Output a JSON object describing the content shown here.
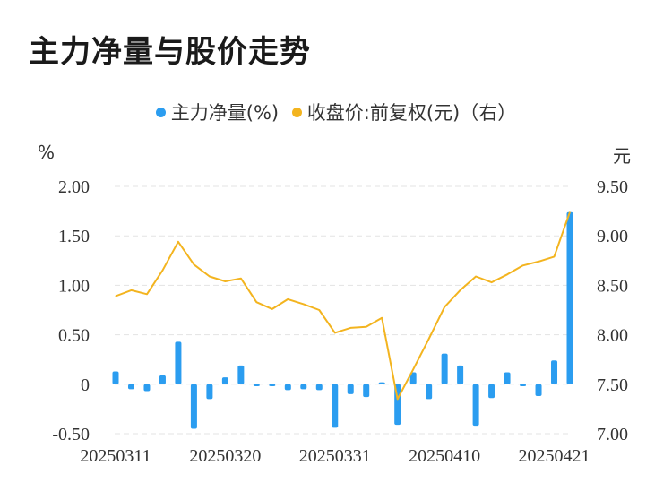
{
  "header": {
    "title": "主力净量与股价走势"
  },
  "legend": {
    "bar_label": "主力净量(%)",
    "line_label": "收盘价:前复权(元)（右）"
  },
  "units": {
    "left": "%",
    "right": "元"
  },
  "colors": {
    "bar": "#2b9df0",
    "line": "#f3b41f",
    "grid": "#e3e3e3",
    "text": "#333333"
  },
  "chart_data": {
    "type": "bar+line",
    "title": "主力净量与股价走势",
    "x_tick_labels": [
      "20250311",
      "20250320",
      "20250331",
      "20250410",
      "20250421"
    ],
    "x_tick_indices": [
      0,
      7,
      14,
      21,
      28
    ],
    "y_left": {
      "label": "%",
      "range": [
        -0.5,
        2.0
      ],
      "ticks": [
        "-0.50",
        "0",
        "0.50",
        "1.00",
        "1.50",
        "2.00"
      ]
    },
    "y_right": {
      "label": "元",
      "range": [
        7.0,
        9.5
      ],
      "ticks": [
        "7.00",
        "7.50",
        "8.00",
        "8.50",
        "9.00",
        "9.50"
      ]
    },
    "grid": true,
    "legend_position": "top-center",
    "series": [
      {
        "name": "主力净量(%)",
        "type": "bar",
        "axis": "left",
        "values": [
          0.13,
          -0.05,
          -0.07,
          0.09,
          0.43,
          -0.45,
          -0.15,
          0.07,
          0.19,
          -0.02,
          -0.02,
          -0.06,
          -0.05,
          -0.06,
          -0.44,
          -0.1,
          -0.13,
          0.02,
          -0.41,
          0.12,
          -0.15,
          0.31,
          0.19,
          -0.42,
          -0.14,
          0.12,
          -0.02,
          -0.12,
          0.24,
          1.74
        ]
      },
      {
        "name": "收盘价:前复权(元)（右）",
        "type": "line",
        "axis": "right",
        "values": [
          8.39,
          8.45,
          8.41,
          8.65,
          8.94,
          8.71,
          8.59,
          8.54,
          8.57,
          8.33,
          8.26,
          8.36,
          8.31,
          8.25,
          8.02,
          8.07,
          8.08,
          8.17,
          7.35,
          7.65,
          7.96,
          8.28,
          8.45,
          8.59,
          8.53,
          8.61,
          8.7,
          8.74,
          8.79,
          9.24
        ]
      }
    ]
  }
}
